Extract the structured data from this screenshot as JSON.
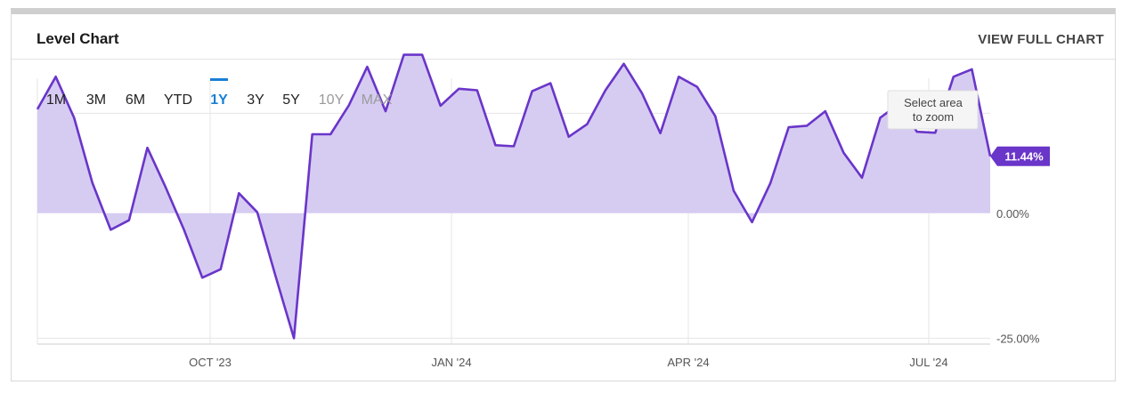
{
  "header": {
    "title": "Level Chart",
    "full_chart_label": "VIEW FULL CHART"
  },
  "range_buttons": [
    {
      "label": "1M",
      "state": "enabled"
    },
    {
      "label": "3M",
      "state": "enabled"
    },
    {
      "label": "6M",
      "state": "enabled"
    },
    {
      "label": "YTD",
      "state": "enabled"
    },
    {
      "label": "1Y",
      "state": "selected"
    },
    {
      "label": "3Y",
      "state": "enabled"
    },
    {
      "label": "5Y",
      "state": "enabled"
    },
    {
      "label": "10Y",
      "state": "disabled"
    },
    {
      "label": "MAX",
      "state": "disabled"
    }
  ],
  "zoom_hint": {
    "line1": "Select area",
    "line2": "to zoom"
  },
  "colors": {
    "series": "#6a35c9",
    "fill": "#d6ccf2",
    "accent": "#1a7fd6",
    "badge": "#6a35c9"
  },
  "chart_data": {
    "type": "area",
    "x_tick_labels": [
      "OCT '23",
      "JAN '24",
      "APR '24",
      "JUL '24"
    ],
    "y_tick_labels": [
      "0.00%",
      "-25.00%"
    ],
    "y_ticks": [
      0,
      -25
    ],
    "ylim": [
      -26,
      27
    ],
    "grid": true,
    "last_value_label": "11.44%",
    "series": [
      {
        "values": [
          20.8,
          27.3,
          19.1,
          6.1,
          -3.3,
          -1.4,
          13.1,
          5.2,
          -3.3,
          -12.9,
          -11.2,
          4.0,
          0.2,
          -12.6,
          -25.0,
          15.8,
          15.8,
          21.6,
          29.3,
          20.4,
          31.7,
          31.7,
          21.5,
          24.9,
          24.6,
          13.6,
          13.4,
          24.4,
          26.0,
          15.3,
          17.8,
          24.6,
          29.9,
          24.0,
          16.0,
          27.3,
          25.3,
          19.4,
          4.5,
          -1.8,
          6.0,
          17.2,
          17.5,
          20.4,
          12.1,
          7.1,
          19.1,
          21.8,
          16.3,
          16.1,
          27.3,
          28.8,
          11.4
        ]
      }
    ]
  }
}
